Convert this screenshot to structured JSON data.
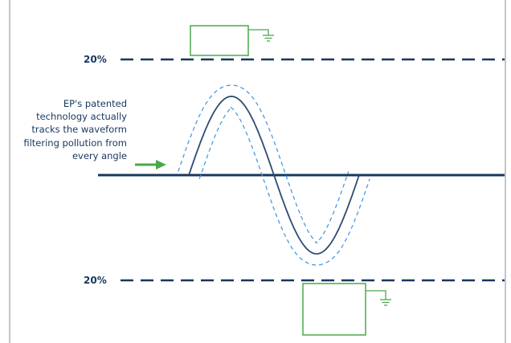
{
  "diagram": {
    "top_band_label": "20%",
    "bottom_band_label": "20%",
    "annotation_lines": [
      "EP's patented",
      "technology actually",
      "tracks the waveform",
      "filtering pollution from",
      "every angle"
    ],
    "icons": {
      "top_filter": "filter-box-icon",
      "top_ground": "ground-symbol-icon",
      "bottom_filter": "filter-box-icon",
      "bottom_ground": "ground-symbol-icon",
      "pointer": "right-arrow-icon"
    },
    "colors": {
      "navy": "#17375e",
      "waveform": "#2e4b73",
      "tracking_band": "#4a9be0",
      "filter_box": "#4aa84a",
      "frame": "#9aa0a6"
    }
  }
}
